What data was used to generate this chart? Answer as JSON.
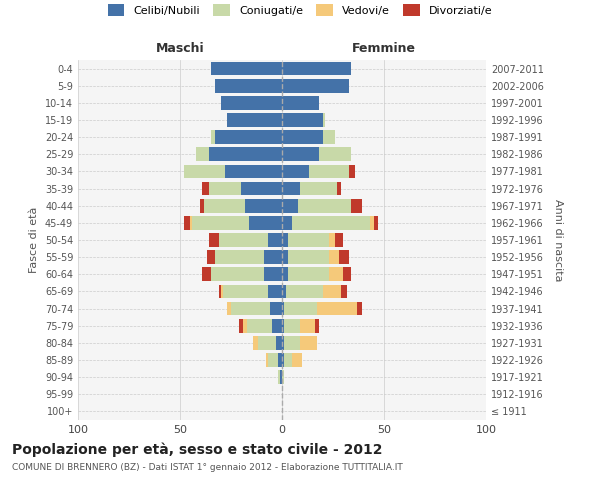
{
  "age_groups": [
    "100+",
    "95-99",
    "90-94",
    "85-89",
    "80-84",
    "75-79",
    "70-74",
    "65-69",
    "60-64",
    "55-59",
    "50-54",
    "45-49",
    "40-44",
    "35-39",
    "30-34",
    "25-29",
    "20-24",
    "15-19",
    "10-14",
    "5-9",
    "0-4"
  ],
  "birth_years": [
    "≤ 1911",
    "1912-1916",
    "1917-1921",
    "1922-1926",
    "1927-1931",
    "1932-1936",
    "1937-1941",
    "1942-1946",
    "1947-1951",
    "1952-1956",
    "1957-1961",
    "1962-1966",
    "1967-1971",
    "1972-1976",
    "1977-1981",
    "1982-1986",
    "1987-1991",
    "1992-1996",
    "1997-2001",
    "2002-2006",
    "2007-2011"
  ],
  "maschi": {
    "celibi": [
      0,
      0,
      1,
      2,
      3,
      5,
      6,
      7,
      9,
      9,
      7,
      16,
      18,
      20,
      28,
      36,
      33,
      27,
      30,
      33,
      35
    ],
    "coniugati": [
      0,
      0,
      1,
      5,
      9,
      12,
      19,
      22,
      26,
      24,
      24,
      28,
      20,
      16,
      20,
      6,
      2,
      0,
      0,
      0,
      0
    ],
    "vedovi": [
      0,
      0,
      0,
      1,
      2,
      2,
      2,
      1,
      0,
      0,
      0,
      1,
      0,
      0,
      0,
      0,
      0,
      0,
      0,
      0,
      0
    ],
    "divorziati": [
      0,
      0,
      0,
      0,
      0,
      2,
      0,
      1,
      4,
      4,
      5,
      3,
      2,
      3,
      0,
      0,
      0,
      0,
      0,
      0,
      0
    ]
  },
  "femmine": {
    "nubili": [
      0,
      0,
      0,
      1,
      1,
      1,
      1,
      2,
      3,
      3,
      3,
      5,
      8,
      9,
      13,
      18,
      20,
      20,
      18,
      33,
      34
    ],
    "coniugate": [
      0,
      0,
      1,
      4,
      8,
      8,
      16,
      18,
      20,
      20,
      20,
      38,
      26,
      18,
      20,
      16,
      6,
      1,
      0,
      0,
      0
    ],
    "vedove": [
      0,
      0,
      0,
      5,
      8,
      7,
      20,
      9,
      7,
      5,
      3,
      2,
      0,
      0,
      0,
      0,
      0,
      0,
      0,
      0,
      0
    ],
    "divorziate": [
      0,
      0,
      0,
      0,
      0,
      2,
      2,
      3,
      4,
      5,
      4,
      2,
      5,
      2,
      3,
      0,
      0,
      0,
      0,
      0,
      0
    ]
  },
  "colors": {
    "celibi": "#4472a8",
    "coniugati": "#c8d9a8",
    "vedovi": "#f5c97a",
    "divorziati": "#c0392b"
  },
  "xlim": 100,
  "title": "Popolazione per età, sesso e stato civile - 2012",
  "subtitle": "COMUNE DI BRENNERO (BZ) - Dati ISTAT 1° gennaio 2012 - Elaborazione TUTTITALIA.IT",
  "ylabel_left": "Fasce di età",
  "ylabel_right": "Anni di nascita",
  "xlabel_left": "Maschi",
  "xlabel_right": "Femmine",
  "bg_color": "#f5f5f5",
  "grid_color": "#cccccc",
  "legend_labels": [
    "Celibi/Nubili",
    "Coniugati/e",
    "Vedovi/e",
    "Divorziati/e"
  ]
}
